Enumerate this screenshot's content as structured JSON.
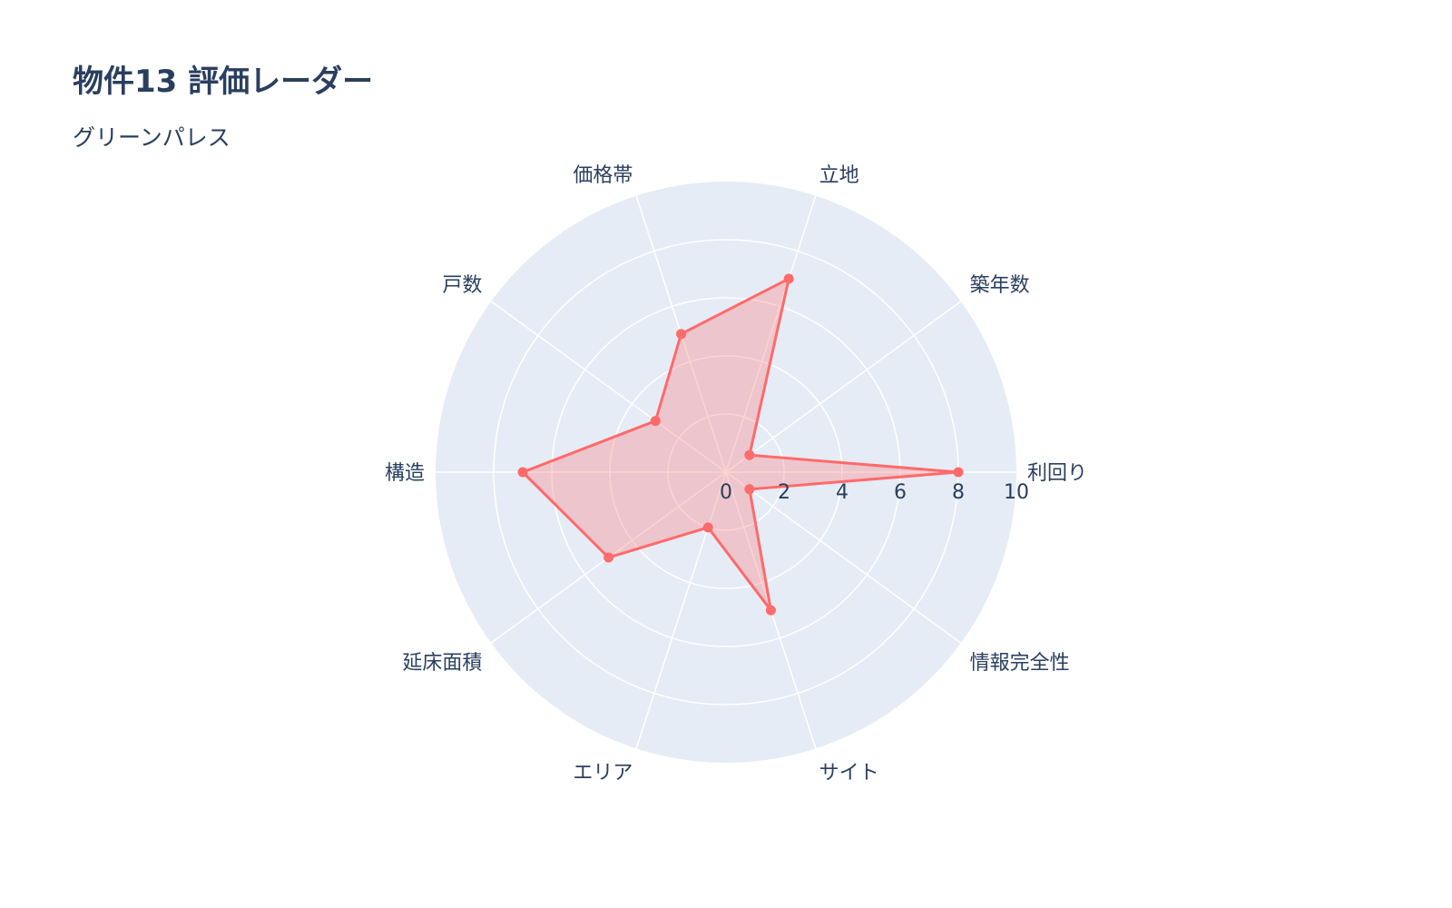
{
  "chart_data": {
    "type": "radar",
    "title": "物件13 評価レーダー",
    "subtitle": "グリーンパレス",
    "categories": [
      "利回り",
      "築年数",
      "立地",
      "価格帯",
      "戸数",
      "構造",
      "延床面積",
      "エリア",
      "サイト",
      "情報完全性"
    ],
    "values": [
      8,
      1,
      7,
      5,
      3,
      7,
      5,
      2,
      5,
      1
    ],
    "radial_range": [
      0,
      10
    ],
    "radial_ticks": [
      "0",
      "2",
      "4",
      "6",
      "8",
      "10"
    ],
    "grid": true,
    "colors": {
      "line": "#ff6a6a",
      "fill": "rgba(255,106,106,0.3)",
      "polar_bg": "#e5ecf6",
      "grid": "#ffffff",
      "text": "#2a3f5f"
    }
  }
}
